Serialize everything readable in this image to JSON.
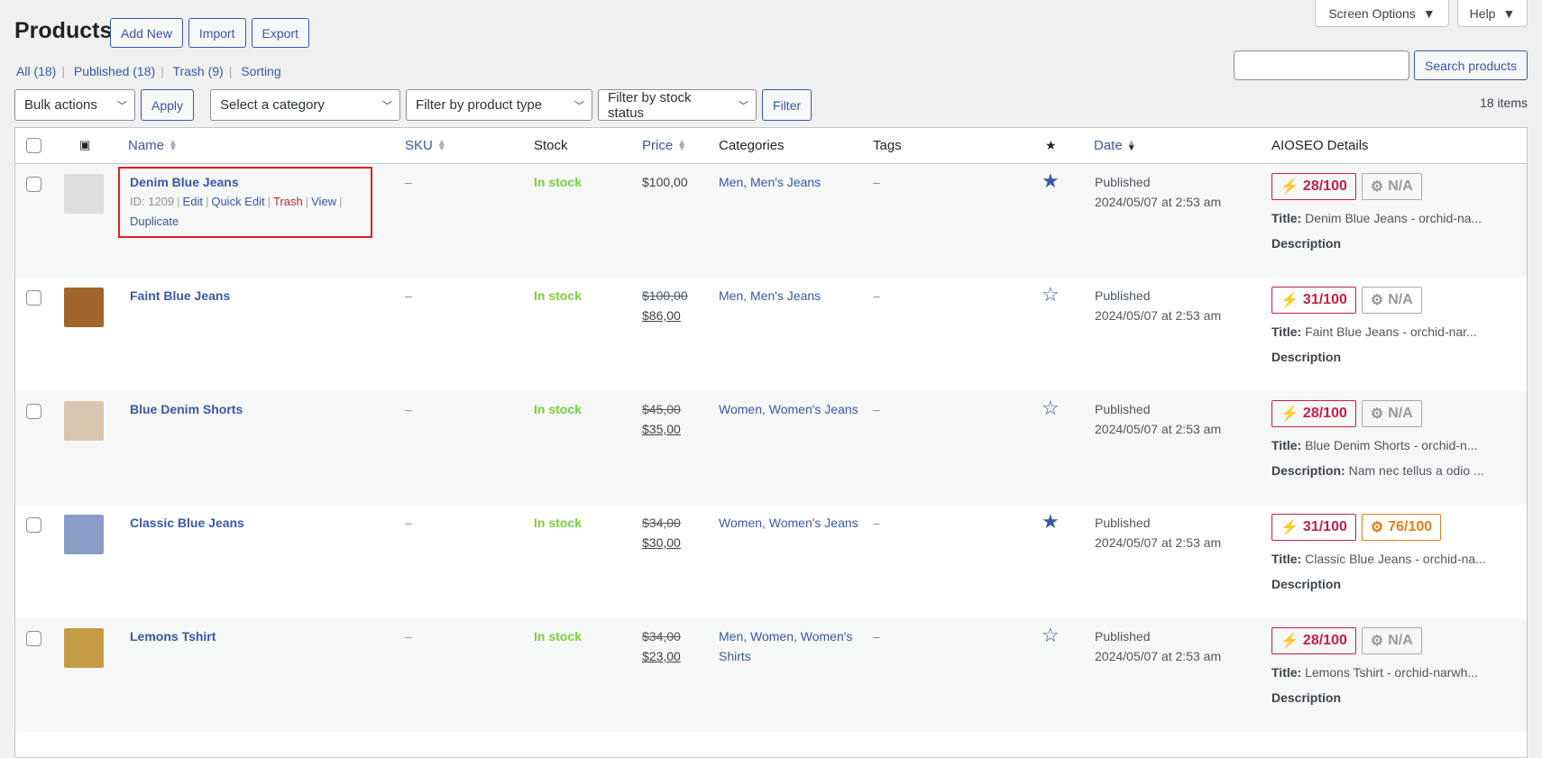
{
  "header": {
    "title": "Products",
    "add_new": "Add New",
    "import": "Import",
    "export": "Export",
    "screen_options": "Screen Options",
    "help": "Help"
  },
  "views": [
    {
      "label": "All (18)"
    },
    {
      "label": "Published (18)"
    },
    {
      "label": "Trash (9)"
    },
    {
      "label": "Sorting"
    }
  ],
  "search": {
    "value": "",
    "button": "Search products"
  },
  "filters": {
    "bulk": "Bulk actions",
    "apply": "Apply",
    "category": "Select a category",
    "type": "Filter by product type",
    "stock": "Filter by stock status",
    "filter": "Filter"
  },
  "item_count": "18 items",
  "columns": {
    "name": "Name",
    "sku": "SKU",
    "stock": "Stock",
    "price": "Price",
    "categories": "Categories",
    "tags": "Tags",
    "date": "Date",
    "aioseo": "AIOSEO Details"
  },
  "row_actions": {
    "id": "ID: 1209",
    "edit": "Edit",
    "quick_edit": "Quick Edit",
    "trash": "Trash",
    "view": "View",
    "duplicate": "Duplicate"
  },
  "rows": [
    {
      "name": "Denim Blue Jeans",
      "sku": "–",
      "stock": "In stock",
      "regular_price": "",
      "price": "$100,00",
      "categories": "Men, Men's Jeans",
      "tags": "–",
      "featured": true,
      "status": "Published",
      "date": "2024/05/07 at 2:53 am",
      "seo_score": "28/100",
      "truseo": "N/A",
      "truseo_color": "gray",
      "seo_title_label": "Title:",
      "seo_title": "Denim Blue Jeans - orchid-na...",
      "seo_desc_label": "Description",
      "seo_desc": "",
      "thumb_color": "#ddd"
    },
    {
      "name": "Faint Blue Jeans",
      "sku": "–",
      "stock": "In stock",
      "regular_price": "$100,00",
      "price": "$86,00",
      "categories": "Men, Men's Jeans",
      "tags": "–",
      "featured": false,
      "status": "Published",
      "date": "2024/05/07 at 2:53 am",
      "seo_score": "31/100",
      "truseo": "N/A",
      "truseo_color": "gray",
      "seo_title_label": "Title:",
      "seo_title": "Faint Blue Jeans - orchid-nar...",
      "seo_desc_label": "Description",
      "seo_desc": "",
      "thumb_color": "#a0662c"
    },
    {
      "name": "Blue Denim Shorts",
      "sku": "–",
      "stock": "In stock",
      "regular_price": "$45,00",
      "price": "$35,00",
      "categories": "Women, Women's Jeans",
      "tags": "–",
      "featured": false,
      "status": "Published",
      "date": "2024/05/07 at 2:53 am",
      "seo_score": "28/100",
      "truseo": "N/A",
      "truseo_color": "gray",
      "seo_title_label": "Title:",
      "seo_title": "Blue Denim Shorts - orchid-n...",
      "seo_desc_label": "Description:",
      "seo_desc": "Nam nec tellus a odio ...",
      "thumb_color": "#d9c6b0"
    },
    {
      "name": "Classic Blue Jeans",
      "sku": "–",
      "stock": "In stock",
      "regular_price": "$34,00",
      "price": "$30,00",
      "categories": "Women, Women's Jeans",
      "tags": "–",
      "featured": true,
      "status": "Published",
      "date": "2024/05/07 at 2:53 am",
      "seo_score": "31/100",
      "truseo": "76/100",
      "truseo_color": "orange",
      "seo_title_label": "Title:",
      "seo_title": "Classic Blue Jeans - orchid-na...",
      "seo_desc_label": "Description",
      "seo_desc": "",
      "thumb_color": "#8a9bc8"
    },
    {
      "name": "Lemons Tshirt",
      "sku": "–",
      "stock": "In stock",
      "regular_price": "$34,00",
      "price": "$23,00",
      "categories": "Men, Women, Women's Shirts",
      "tags": "–",
      "featured": false,
      "status": "Published",
      "date": "2024/05/07 at 2:53 am",
      "seo_score": "28/100",
      "truseo": "N/A",
      "truseo_color": "gray",
      "seo_title_label": "Title:",
      "seo_title": "Lemons Tshirt - orchid-narwh...",
      "seo_desc_label": "Description",
      "seo_desc": "",
      "thumb_color": "#c49a45"
    }
  ]
}
